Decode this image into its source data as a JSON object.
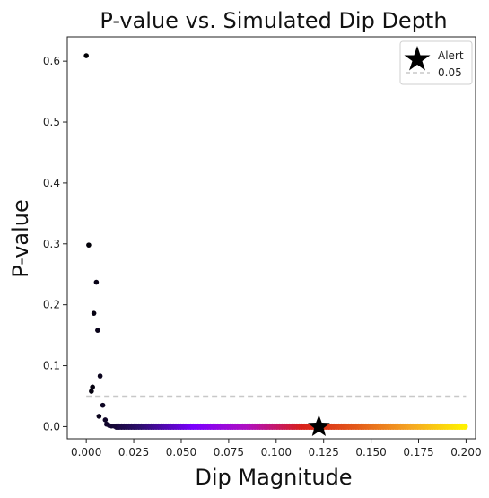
{
  "chart_data": {
    "type": "scatter",
    "title": "P-value vs. Simulated Dip Depth",
    "xlabel": "Dip Magnitude",
    "ylabel": "P-value",
    "xlim": [
      -0.01,
      0.205
    ],
    "ylim": [
      -0.02,
      0.64
    ],
    "xticks": [
      "0.000",
      "0.025",
      "0.050",
      "0.075",
      "0.100",
      "0.125",
      "0.150",
      "0.175",
      "0.200"
    ],
    "xtick_values": [
      0.0,
      0.025,
      0.05,
      0.075,
      0.1,
      0.125,
      0.15,
      0.175,
      0.2
    ],
    "yticks": [
      "0.0",
      "0.1",
      "0.2",
      "0.3",
      "0.4",
      "0.5",
      "0.6"
    ],
    "ytick_values": [
      0.0,
      0.1,
      0.2,
      0.3,
      0.4,
      0.5,
      0.6
    ],
    "colormap": "plasma-like gradient from black to yellow by dip magnitude",
    "colors": [
      "#000004",
      "#2c0f6b",
      "#7a00ff",
      "#b010c0",
      "#d8201a",
      "#e35a1a",
      "#f5a623",
      "#fff200"
    ],
    "scatter_points": [
      {
        "x": 0.0,
        "y": 0.609
      },
      {
        "x": 0.0013,
        "y": 0.298
      },
      {
        "x": 0.0027,
        "y": 0.058
      },
      {
        "x": 0.0033,
        "y": 0.065
      },
      {
        "x": 0.004,
        "y": 0.186
      },
      {
        "x": 0.0053,
        "y": 0.237
      },
      {
        "x": 0.006,
        "y": 0.158
      },
      {
        "x": 0.0067,
        "y": 0.017
      },
      {
        "x": 0.0073,
        "y": 0.083
      },
      {
        "x": 0.0087,
        "y": 0.035
      },
      {
        "x": 0.01,
        "y": 0.011
      },
      {
        "x": 0.0107,
        "y": 0.004
      },
      {
        "x": 0.012,
        "y": 0.002
      },
      {
        "x": 0.0133,
        "y": 0.001
      },
      {
        "x": 0.0147,
        "y": 0.001
      }
    ],
    "flat_series": {
      "x_start": 0.016,
      "x_end": 0.2,
      "step": 0.0013,
      "y": 0.0
    },
    "alert_point": {
      "x": 0.1225,
      "y": 0.0
    },
    "reference_line": {
      "y": 0.05,
      "color": "#c8c8c8",
      "style": "dashed"
    },
    "legend": {
      "location": "top-right",
      "entries": [
        {
          "label": "Alert",
          "marker": "star",
          "color": "#000000"
        },
        {
          "label": "0.05",
          "marker": "dashed-line",
          "color": "#c8c8c8"
        }
      ]
    }
  }
}
